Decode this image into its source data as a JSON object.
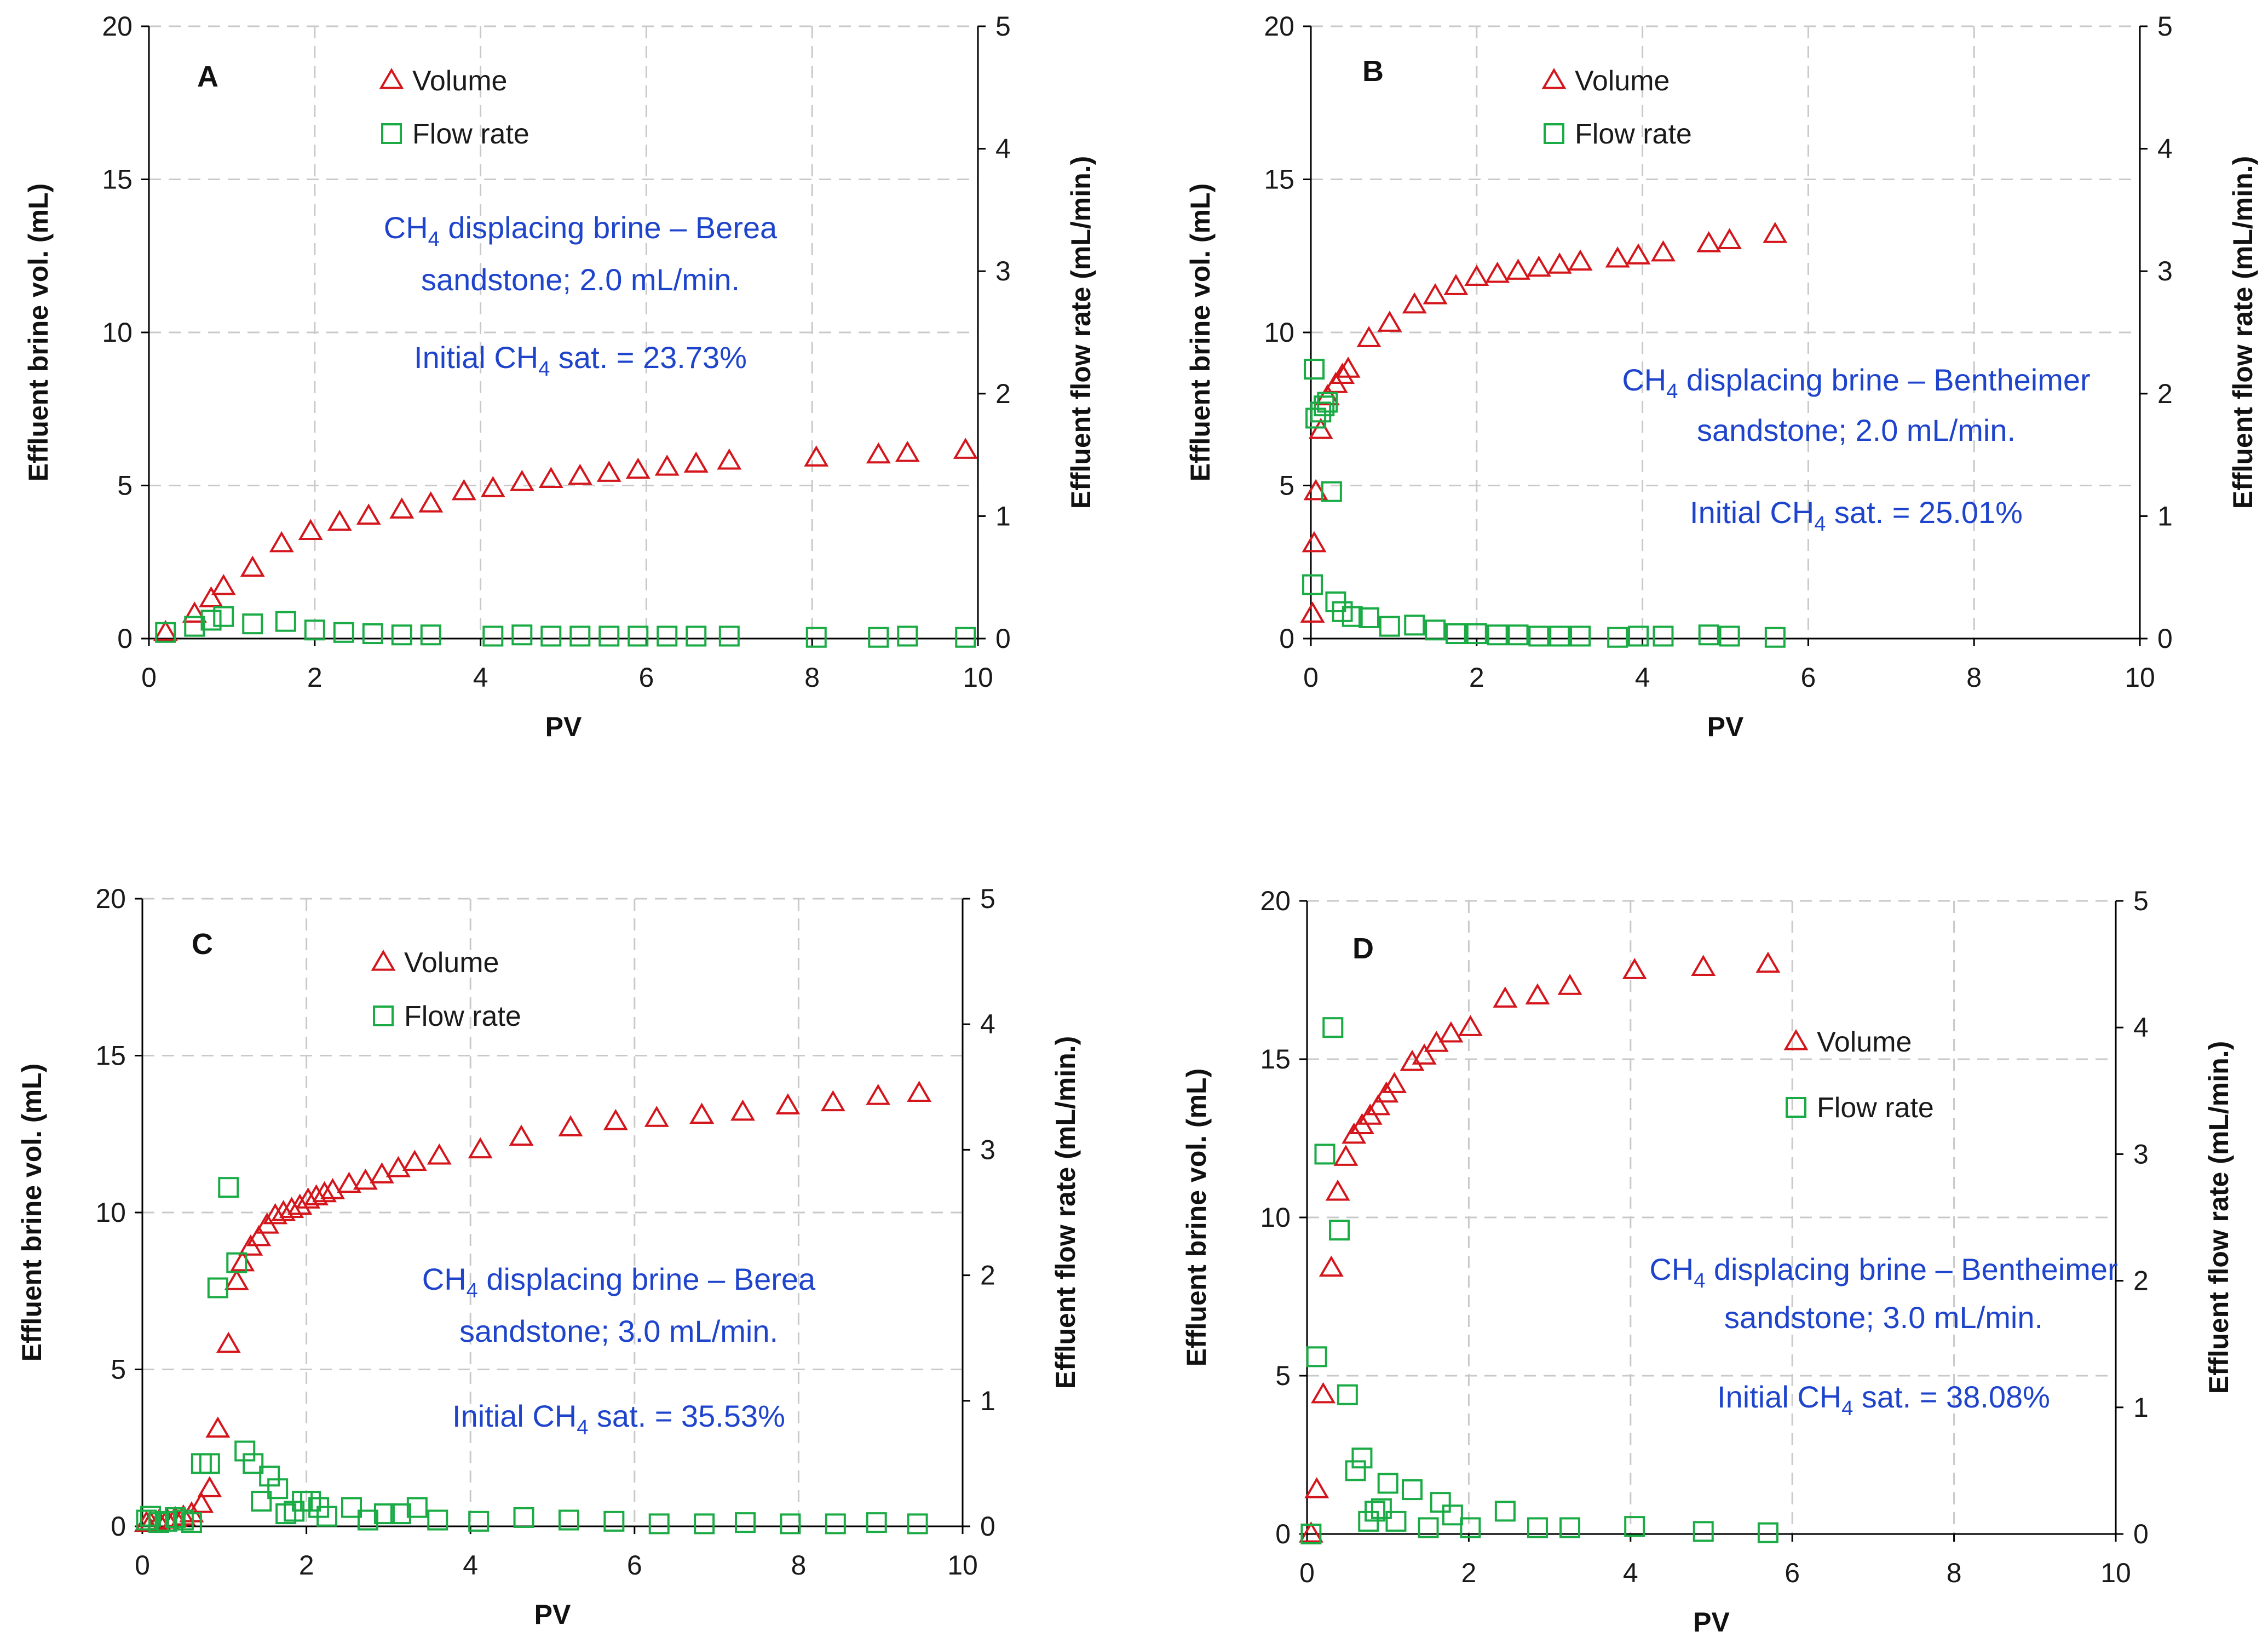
{
  "colors": {
    "volume": "#d4161c",
    "flow_rate": "#1aab45",
    "annotation": "#1f44cc"
  },
  "chart_data": [
    {
      "type": "scatter",
      "panel": "A",
      "xlabel": "PV",
      "ylabel": "Effluent brine vol. (mL)",
      "y2label": "Effluent flow rate (mL/min.)",
      "xlim": [
        0,
        10
      ],
      "ylim": [
        0,
        20
      ],
      "y2lim": [
        0,
        5
      ],
      "xticks": [
        "0",
        "2",
        "4",
        "6",
        "8",
        "10"
      ],
      "yticks": [
        "0",
        "5",
        "10",
        "15",
        "20"
      ],
      "y2ticks": [
        "0",
        "1",
        "2",
        "3",
        "4",
        "5"
      ],
      "grid": true,
      "legend": {
        "position": "top-center",
        "items": [
          "Volume",
          "Flow rate"
        ]
      },
      "annotation": {
        "line1": "CH4 displacing brine – Berea",
        "line2": "sandstone;  2.0 mL/min.",
        "line3": "Initial CH4 sat. = 23.73%"
      },
      "series": [
        {
          "name": "Volume",
          "axis": "left",
          "marker": "triangle",
          "x": [
            0.2,
            0.55,
            0.75,
            0.9,
            1.25,
            1.6,
            1.95,
            2.3,
            2.65,
            3.05,
            3.4,
            3.8,
            4.15,
            4.5,
            4.85,
            5.2,
            5.55,
            5.9,
            6.25,
            6.6,
            7.0,
            8.05,
            8.8,
            9.15,
            9.85
          ],
          "y": [
            0.2,
            0.8,
            1.3,
            1.7,
            2.3,
            3.1,
            3.5,
            3.8,
            4.0,
            4.2,
            4.4,
            4.8,
            4.9,
            5.1,
            5.2,
            5.3,
            5.4,
            5.5,
            5.6,
            5.7,
            5.8,
            5.9,
            6.0,
            6.05,
            6.15
          ]
        },
        {
          "name": "Flow rate",
          "axis": "right",
          "marker": "square",
          "x": [
            0.2,
            0.55,
            0.75,
            0.9,
            1.25,
            1.65,
            2.0,
            2.35,
            2.7,
            3.05,
            3.4,
            4.15,
            4.5,
            4.85,
            5.2,
            5.55,
            5.9,
            6.25,
            6.6,
            7.0,
            8.05,
            8.8,
            9.15,
            9.85
          ],
          "y": [
            0.05,
            0.1,
            0.15,
            0.18,
            0.12,
            0.14,
            0.07,
            0.05,
            0.04,
            0.03,
            0.03,
            0.02,
            0.03,
            0.02,
            0.02,
            0.02,
            0.02,
            0.02,
            0.02,
            0.02,
            0.01,
            0.01,
            0.02,
            0.01
          ]
        }
      ]
    },
    {
      "type": "scatter",
      "panel": "B",
      "xlabel": "PV",
      "ylabel": "Effluent brine vol. (mL)",
      "y2label": "Effluent flow rate (mL/min.)",
      "xlim": [
        0,
        10
      ],
      "ylim": [
        0,
        20
      ],
      "y2lim": [
        0,
        5
      ],
      "xticks": [
        "0",
        "2",
        "4",
        "6",
        "8",
        "10"
      ],
      "yticks": [
        "0",
        "5",
        "10",
        "15",
        "20"
      ],
      "y2ticks": [
        "0",
        "1",
        "2",
        "3",
        "4",
        "5"
      ],
      "grid": true,
      "legend": {
        "position": "top-center",
        "items": [
          "Volume",
          "Flow rate"
        ]
      },
      "annotation": {
        "line1": "CH4 displacing brine – Bentheimer",
        "line2": "sandstone;  2.0 mL/min.",
        "line3": "Initial CH4 sat. = 25.01%"
      },
      "series": [
        {
          "name": "Volume",
          "axis": "left",
          "marker": "triangle",
          "x": [
            0.02,
            0.04,
            0.06,
            0.12,
            0.2,
            0.3,
            0.38,
            0.45,
            0.7,
            0.95,
            1.25,
            1.5,
            1.75,
            2.0,
            2.25,
            2.5,
            2.75,
            3.0,
            3.25,
            3.7,
            3.95,
            4.25,
            4.8,
            5.05,
            5.6
          ],
          "y": [
            0.8,
            3.1,
            4.8,
            6.8,
            7.9,
            8.3,
            8.6,
            8.8,
            9.8,
            10.3,
            10.9,
            11.2,
            11.5,
            11.8,
            11.9,
            12.0,
            12.1,
            12.2,
            12.3,
            12.4,
            12.5,
            12.6,
            12.9,
            13.0,
            13.2
          ]
        },
        {
          "name": "Flow rate",
          "axis": "right",
          "marker": "square",
          "x": [
            0.02,
            0.04,
            0.06,
            0.12,
            0.16,
            0.2,
            0.25,
            0.3,
            0.38,
            0.5,
            0.7,
            0.95,
            1.25,
            1.5,
            1.75,
            2.0,
            2.25,
            2.5,
            2.75,
            3.0,
            3.25,
            3.7,
            3.95,
            4.25,
            4.8,
            5.05,
            5.6
          ],
          "y": [
            0.44,
            2.2,
            1.8,
            1.85,
            1.9,
            1.93,
            1.2,
            0.3,
            0.22,
            0.18,
            0.17,
            0.1,
            0.11,
            0.07,
            0.04,
            0.04,
            0.03,
            0.03,
            0.02,
            0.02,
            0.02,
            0.01,
            0.02,
            0.02,
            0.03,
            0.02,
            0.01
          ]
        }
      ]
    },
    {
      "type": "scatter",
      "panel": "C",
      "xlabel": "PV",
      "ylabel": "Effluent brine vol. (mL)",
      "y2label": "Effluent flow rate (mL/min.)",
      "xlim": [
        0,
        10
      ],
      "ylim": [
        0,
        20
      ],
      "y2lim": [
        0,
        5
      ],
      "xticks": [
        "0",
        "2",
        "4",
        "6",
        "8",
        "10"
      ],
      "yticks": [
        "0",
        "5",
        "10",
        "15",
        "20"
      ],
      "y2ticks": [
        "0",
        "1",
        "2",
        "3",
        "4",
        "5"
      ],
      "grid": true,
      "legend": {
        "position": "top-center",
        "items": [
          "Volume",
          "Flow rate"
        ]
      },
      "annotation": {
        "line1": "CH4 displacing brine – Berea",
        "line2": "sandstone;  3.0 mL/min.",
        "line3": "Initial CH4 sat. = 35.53%"
      },
      "series": [
        {
          "name": "Volume",
          "axis": "left",
          "marker": "triangle",
          "x": [
            0.05,
            0.1,
            0.2,
            0.3,
            0.4,
            0.5,
            0.6,
            0.72,
            0.82,
            0.92,
            1.05,
            1.15,
            1.22,
            1.32,
            1.42,
            1.52,
            1.62,
            1.72,
            1.82,
            1.92,
            2.02,
            2.12,
            2.22,
            2.32,
            2.52,
            2.72,
            2.92,
            3.12,
            3.32,
            3.62,
            4.12,
            4.62,
            5.22,
            5.77,
            6.27,
            6.82,
            7.32,
            7.87,
            8.42,
            8.97,
            9.47
          ],
          "y": [
            0.1,
            0.1,
            0.15,
            0.2,
            0.25,
            0.3,
            0.4,
            0.7,
            1.2,
            3.1,
            5.8,
            7.8,
            8.4,
            8.9,
            9.2,
            9.6,
            9.9,
            10.0,
            10.1,
            10.2,
            10.4,
            10.5,
            10.6,
            10.7,
            10.9,
            11.0,
            11.2,
            11.4,
            11.6,
            11.8,
            12.0,
            12.4,
            12.7,
            12.9,
            13.0,
            13.1,
            13.2,
            13.4,
            13.5,
            13.7,
            13.8
          ]
        },
        {
          "name": "Flow rate",
          "axis": "right",
          "marker": "square",
          "x": [
            0.05,
            0.1,
            0.2,
            0.3,
            0.4,
            0.5,
            0.6,
            0.72,
            0.82,
            0.92,
            1.05,
            1.15,
            1.25,
            1.35,
            1.45,
            1.55,
            1.65,
            1.75,
            1.85,
            1.95,
            2.05,
            2.15,
            2.25,
            2.55,
            2.75,
            2.95,
            3.15,
            3.35,
            3.6,
            4.1,
            4.65,
            5.2,
            5.75,
            6.3,
            6.85,
            7.35,
            7.9,
            8.45,
            8.95,
            9.45
          ],
          "y": [
            0.05,
            0.08,
            0.03,
            0.04,
            0.07,
            0.05,
            0.03,
            0.5,
            0.5,
            1.9,
            2.7,
            2.1,
            0.6,
            0.5,
            0.2,
            0.4,
            0.3,
            0.1,
            0.12,
            0.2,
            0.2,
            0.15,
            0.08,
            0.15,
            0.05,
            0.1,
            0.1,
            0.15,
            0.05,
            0.04,
            0.07,
            0.05,
            0.04,
            0.02,
            0.02,
            0.03,
            0.02,
            0.02,
            0.03,
            0.02
          ]
        }
      ]
    },
    {
      "type": "scatter",
      "panel": "D",
      "xlabel": "PV",
      "ylabel": "Effluent brine vol. (mL)",
      "y2label": "Effluent flow rate (mL/min.)",
      "xlim": [
        0,
        10
      ],
      "ylim": [
        0,
        20
      ],
      "y2lim": [
        0,
        5
      ],
      "xticks": [
        "0",
        "2",
        "4",
        "6",
        "8",
        "10"
      ],
      "yticks": [
        "0",
        "5",
        "10",
        "15",
        "20"
      ],
      "y2ticks": [
        "0",
        "1",
        "2",
        "3",
        "4",
        "5"
      ],
      "grid": true,
      "legend": {
        "position": "upper-middle",
        "items": [
          "Volume",
          "Flow rate"
        ]
      },
      "annotation": {
        "line1": "CH4 displacing brine – Bentheimer",
        "line2": "sandstone;  3.0 mL/min.",
        "line3": "Initial CH4 sat. = 38.08%"
      },
      "series": [
        {
          "name": "Volume",
          "axis": "left",
          "marker": "triangle",
          "x": [
            0.05,
            0.12,
            0.2,
            0.3,
            0.38,
            0.48,
            0.58,
            0.68,
            0.78,
            0.88,
            0.98,
            1.08,
            1.3,
            1.45,
            1.6,
            1.78,
            2.02,
            2.45,
            2.85,
            3.25,
            4.05,
            4.9,
            5.7
          ],
          "y": [
            0.0,
            1.4,
            4.4,
            8.4,
            10.8,
            11.9,
            12.6,
            12.9,
            13.2,
            13.5,
            13.9,
            14.2,
            14.9,
            15.1,
            15.5,
            15.8,
            16.0,
            16.9,
            17.0,
            17.3,
            17.8,
            17.9,
            18.0
          ]
        },
        {
          "name": "Flow rate",
          "axis": "right",
          "marker": "square",
          "x": [
            0.05,
            0.12,
            0.22,
            0.32,
            0.4,
            0.5,
            0.6,
            0.68,
            0.76,
            0.84,
            0.92,
            1.0,
            1.1,
            1.3,
            1.5,
            1.65,
            1.8,
            2.02,
            2.45,
            2.85,
            3.25,
            4.05,
            4.9,
            5.7
          ],
          "y": [
            0.0,
            1.4,
            3.0,
            4.0,
            2.4,
            1.1,
            0.5,
            0.6,
            0.1,
            0.18,
            0.2,
            0.4,
            0.1,
            0.35,
            0.05,
            0.25,
            0.15,
            0.05,
            0.18,
            0.05,
            0.05,
            0.06,
            0.02,
            0.01
          ]
        }
      ]
    }
  ]
}
